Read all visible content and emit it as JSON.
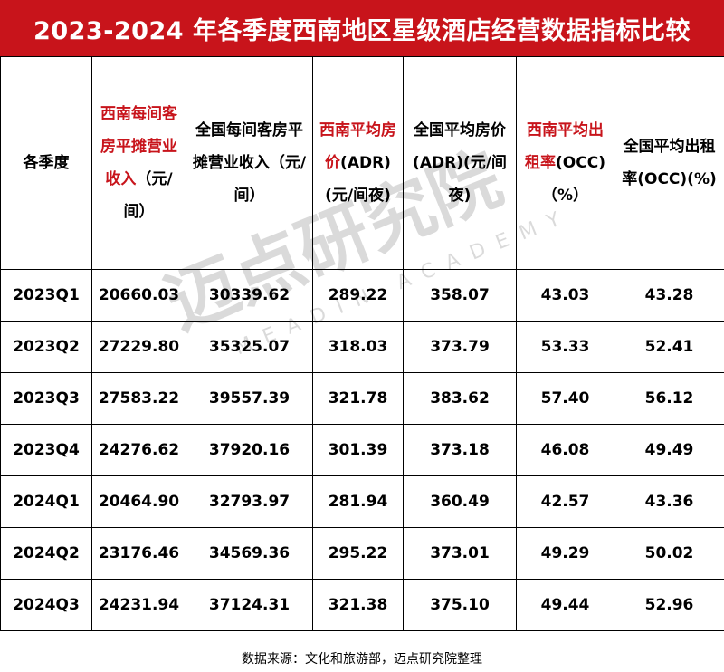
{
  "title": "2023-2024 年各季度西南地区星级酒店经营数据指标比较",
  "headers": [
    {
      "part1": "",
      "part2": "各季度",
      "red": false
    },
    {
      "part1": "西南每间客房平摊营业收入",
      "part2": "（元/间）",
      "red": true
    },
    {
      "part1": "",
      "part2": "全国每间客房平摊营业收入（元/间）",
      "red": false
    },
    {
      "part1": "西南平均房价",
      "part2": "(ADR)(元/间夜)",
      "red": true
    },
    {
      "part1": "",
      "part2": "全国平均房价(ADR)(元/间夜)",
      "red": false
    },
    {
      "part1": "西南平均出租率",
      "part2": "(OCC)（%）",
      "red": true
    },
    {
      "part1": "",
      "part2": "全国平均出租率(OCC)(%)",
      "red": false
    }
  ],
  "rows": [
    [
      "2023Q1",
      "20660.03",
      "30339.62",
      "289.22",
      "358.07",
      "43.03",
      "43.28"
    ],
    [
      "2023Q2",
      "27229.80",
      "35325.07",
      "318.03",
      "373.79",
      "53.33",
      "52.41"
    ],
    [
      "2023Q3",
      "27583.22",
      "39557.39",
      "321.78",
      "383.62",
      "57.40",
      "56.12"
    ],
    [
      "2023Q4",
      "24276.62",
      "37920.16",
      "301.39",
      "373.18",
      "46.08",
      "49.49"
    ],
    [
      "2024Q1",
      "20464.90",
      "32793.97",
      "281.94",
      "360.49",
      "42.57",
      "43.36"
    ],
    [
      "2024Q2",
      "23176.46",
      "34569.36",
      "295.22",
      "373.01",
      "49.29",
      "50.02"
    ],
    [
      "2024Q3",
      "24231.94",
      "37124.31",
      "321.38",
      "375.10",
      "49.44",
      "52.96"
    ]
  ],
  "watermark": {
    "text": "迈点研究院",
    "subtext": "MEADIN ACADEMY"
  },
  "source": "数据来源：文化和旅游部，迈点研究院整理",
  "colors": {
    "title_bg": "#c8141b",
    "accent": "#c8141b"
  }
}
